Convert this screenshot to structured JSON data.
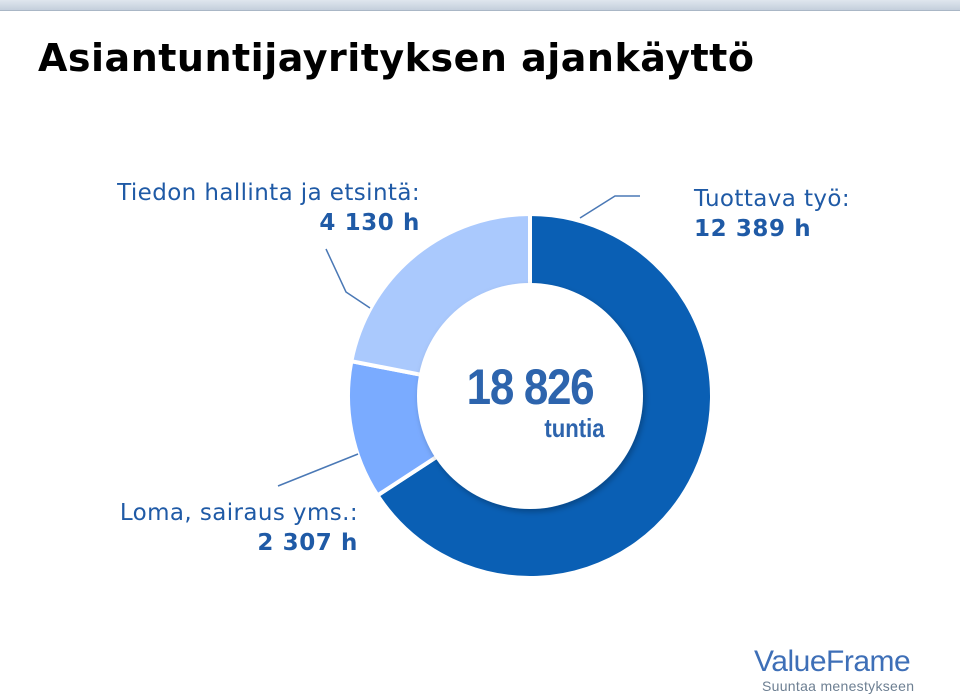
{
  "title": "Asiantuntijayrityksen ajankäyttö",
  "chart_data": {
    "type": "pie",
    "donut": true,
    "slices": [
      {
        "label": "Tuottava työ:",
        "value": 12389,
        "value_label": "12 389 h",
        "color": "#0a5fb4"
      },
      {
        "label": "Loma, sairaus yms.:",
        "value": 2307,
        "value_label": "2 307 h",
        "color": "#7aabff"
      },
      {
        "label": "Tiedon hallinta ja etsintä:",
        "value": 4130,
        "value_label": "4 130 h",
        "color": "#aac9fd"
      }
    ],
    "center_total": "18 826",
    "center_unit": "tuntia"
  },
  "logo": {
    "brand": "ValueFrame",
    "tagline": "Suuntaa menestykseen"
  }
}
